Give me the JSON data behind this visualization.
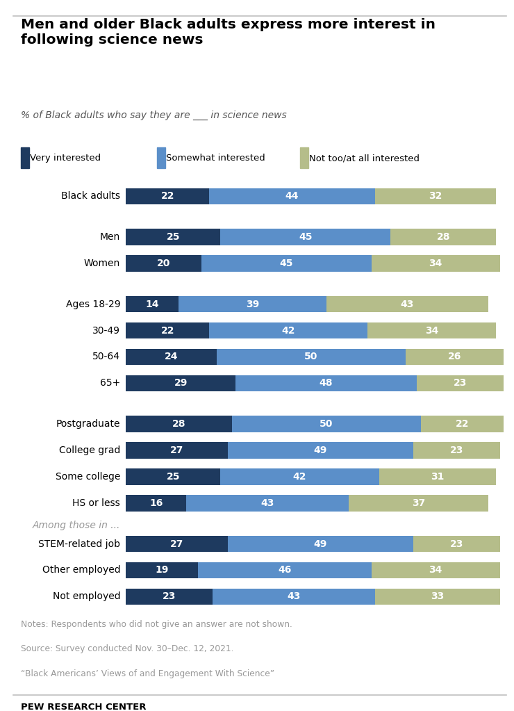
{
  "title": "Men and older Black adults express more interest in\nfollowing science news",
  "subtitle": "% of Black adults who say they are ___ in science news",
  "legend_labels": [
    "Very interested",
    "Somewhat interested",
    "Not too/at all interested"
  ],
  "colors": [
    "#1e3a5f",
    "#5b8fc9",
    "#b5bd8a"
  ],
  "categories": [
    "Black adults",
    "Men",
    "Women",
    "Ages 18-29",
    "30-49",
    "50-64",
    "65+",
    "Postgraduate",
    "College grad",
    "Some college",
    "HS or less",
    "STEM-related job",
    "Other employed",
    "Not employed"
  ],
  "values": [
    [
      22,
      44,
      32
    ],
    [
      25,
      45,
      28
    ],
    [
      20,
      45,
      34
    ],
    [
      14,
      39,
      43
    ],
    [
      22,
      42,
      34
    ],
    [
      24,
      50,
      26
    ],
    [
      29,
      48,
      23
    ],
    [
      28,
      50,
      22
    ],
    [
      27,
      49,
      23
    ],
    [
      25,
      42,
      31
    ],
    [
      16,
      43,
      37
    ],
    [
      27,
      49,
      23
    ],
    [
      19,
      46,
      34
    ],
    [
      23,
      43,
      33
    ]
  ],
  "group_structure": [
    [
      0
    ],
    [
      1,
      2
    ],
    [
      3,
      4,
      5,
      6
    ],
    [
      7,
      8,
      9,
      10
    ],
    [
      11,
      12,
      13
    ]
  ],
  "among_label": "Among those in ...",
  "among_label_before_index": 11,
  "notes_line1": "Notes: Respondents who did not give an answer are not shown.",
  "notes_line2": "Source: Survey conducted Nov. 30–Dec. 12, 2021.",
  "notes_line3": "“Black Americans’ Views of and Engagement With Science”",
  "footer": "PEW RESEARCH CENTER",
  "bg_color": "#ffffff",
  "bar_height": 0.62,
  "text_color_notes": "#999999"
}
